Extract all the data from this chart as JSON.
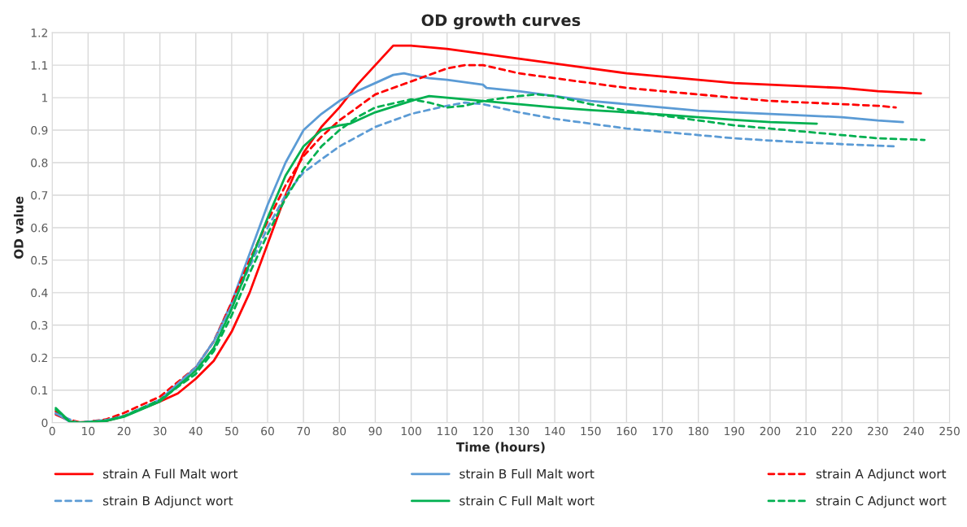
{
  "chart_data": {
    "type": "line",
    "title": "OD growth curves",
    "xlabel": "Time (hours)",
    "ylabel": "OD value",
    "xlim": [
      0,
      250
    ],
    "xticks": [
      0,
      10,
      20,
      30,
      40,
      50,
      60,
      70,
      80,
      90,
      100,
      110,
      120,
      130,
      140,
      150,
      160,
      170,
      180,
      190,
      200,
      210,
      220,
      230,
      240,
      250
    ],
    "ylim": [
      0,
      1.2
    ],
    "yticks": [
      0,
      0.1,
      0.2,
      0.3,
      0.4,
      0.5,
      0.6,
      0.7,
      0.8,
      0.9,
      1,
      1.1,
      1.2
    ],
    "grid": true,
    "legend": "bottom",
    "marker": "none",
    "series": [
      {
        "name": "strain A Full Malt wort",
        "color": "#ff0000",
        "line_style": "solid",
        "x": [
          1,
          6,
          15,
          20,
          30,
          35,
          40,
          45,
          50,
          55,
          60,
          65,
          70,
          75,
          80,
          85,
          90,
          95,
          100,
          110,
          120,
          130,
          140,
          150,
          160,
          170,
          180,
          190,
          200,
          210,
          220,
          230,
          242
        ],
        "values": [
          0.025,
          0,
          0.005,
          0.02,
          0.065,
          0.09,
          0.135,
          0.19,
          0.28,
          0.4,
          0.55,
          0.7,
          0.83,
          0.91,
          0.97,
          1.04,
          1.1,
          1.16,
          1.16,
          1.15,
          1.135,
          1.12,
          1.105,
          1.09,
          1.075,
          1.065,
          1.055,
          1.045,
          1.04,
          1.035,
          1.03,
          1.02,
          1.013
        ]
      },
      {
        "name": "strain B Full Malt wort",
        "color": "#5b9bd5",
        "line_style": "solid",
        "x": [
          1,
          5,
          8,
          15,
          20,
          30,
          40,
          45,
          50,
          55,
          60,
          65,
          70,
          72,
          75,
          80,
          85,
          90,
          95,
          98,
          100,
          105,
          110,
          120,
          121,
          130,
          140,
          150,
          160,
          170,
          180,
          190,
          200,
          210,
          220,
          230,
          237
        ],
        "values": [
          0.03,
          0.002,
          0,
          0.008,
          0.02,
          0.07,
          0.17,
          0.25,
          0.37,
          0.52,
          0.67,
          0.8,
          0.9,
          0.92,
          0.95,
          0.99,
          1.02,
          1.045,
          1.07,
          1.075,
          1.07,
          1.06,
          1.055,
          1.04,
          1.03,
          1.02,
          1.005,
          0.99,
          0.98,
          0.97,
          0.96,
          0.955,
          0.95,
          0.945,
          0.94,
          0.93,
          0.925
        ]
      },
      {
        "name": "strain A Adjunct wort",
        "color": "#ff0000",
        "line_style": "dashed",
        "x": [
          1,
          4,
          8,
          15,
          20,
          30,
          40,
          45,
          50,
          55,
          60,
          65,
          70,
          75,
          80,
          85,
          90,
          100,
          110,
          115,
          120,
          130,
          140,
          150,
          160,
          170,
          180,
          190,
          200,
          210,
          220,
          230,
          235
        ],
        "values": [
          0.035,
          0.012,
          0,
          0.01,
          0.03,
          0.08,
          0.17,
          0.25,
          0.37,
          0.5,
          0.62,
          0.73,
          0.82,
          0.88,
          0.93,
          0.97,
          1.01,
          1.05,
          1.09,
          1.1,
          1.1,
          1.075,
          1.06,
          1.045,
          1.03,
          1.02,
          1.01,
          1.0,
          0.99,
          0.985,
          0.98,
          0.975,
          0.97
        ]
      },
      {
        "name": "strain B Adjunct wort",
        "color": "#5b9bd5",
        "line_style": "dashed",
        "x": [
          1,
          7,
          15,
          20,
          30,
          40,
          45,
          50,
          55,
          60,
          65,
          70,
          75,
          80,
          85,
          90,
          100,
          110,
          115,
          120,
          130,
          140,
          150,
          160,
          170,
          180,
          190,
          200,
          210,
          220,
          235
        ],
        "values": [
          0.028,
          0,
          0.008,
          0.02,
          0.07,
          0.17,
          0.25,
          0.36,
          0.48,
          0.6,
          0.7,
          0.77,
          0.81,
          0.85,
          0.88,
          0.91,
          0.95,
          0.975,
          0.985,
          0.98,
          0.955,
          0.935,
          0.92,
          0.905,
          0.895,
          0.885,
          0.875,
          0.868,
          0.862,
          0.857,
          0.85
        ]
      },
      {
        "name": "strain C Full Malt wort",
        "color": "#00b050",
        "line_style": "solid",
        "x": [
          1,
          5,
          8,
          15,
          20,
          30,
          40,
          45,
          50,
          55,
          60,
          65,
          70,
          75,
          80,
          83,
          85,
          90,
          100,
          105,
          110,
          120,
          130,
          140,
          150,
          160,
          170,
          180,
          190,
          200,
          213
        ],
        "values": [
          0.045,
          0.002,
          0,
          0.005,
          0.018,
          0.065,
          0.16,
          0.23,
          0.35,
          0.49,
          0.63,
          0.76,
          0.85,
          0.9,
          0.915,
          0.92,
          0.93,
          0.955,
          0.99,
          1.005,
          1.0,
          0.99,
          0.98,
          0.97,
          0.962,
          0.955,
          0.948,
          0.94,
          0.932,
          0.925,
          0.92
        ]
      },
      {
        "name": "strain C Adjunct wort",
        "color": "#00b050",
        "line_style": "dashed",
        "x": [
          1,
          5,
          8,
          15,
          20,
          30,
          40,
          45,
          50,
          55,
          60,
          65,
          70,
          75,
          80,
          85,
          90,
          100,
          105,
          110,
          115,
          120,
          130,
          135,
          140,
          150,
          160,
          170,
          180,
          190,
          200,
          210,
          220,
          230,
          243
        ],
        "values": [
          0.04,
          0.002,
          0,
          0.006,
          0.02,
          0.07,
          0.15,
          0.22,
          0.33,
          0.46,
          0.58,
          0.69,
          0.78,
          0.85,
          0.9,
          0.94,
          0.97,
          0.995,
          0.985,
          0.97,
          0.975,
          0.99,
          1.005,
          1.01,
          1.005,
          0.98,
          0.96,
          0.945,
          0.93,
          0.915,
          0.905,
          0.895,
          0.885,
          0.875,
          0.87
        ]
      }
    ]
  }
}
